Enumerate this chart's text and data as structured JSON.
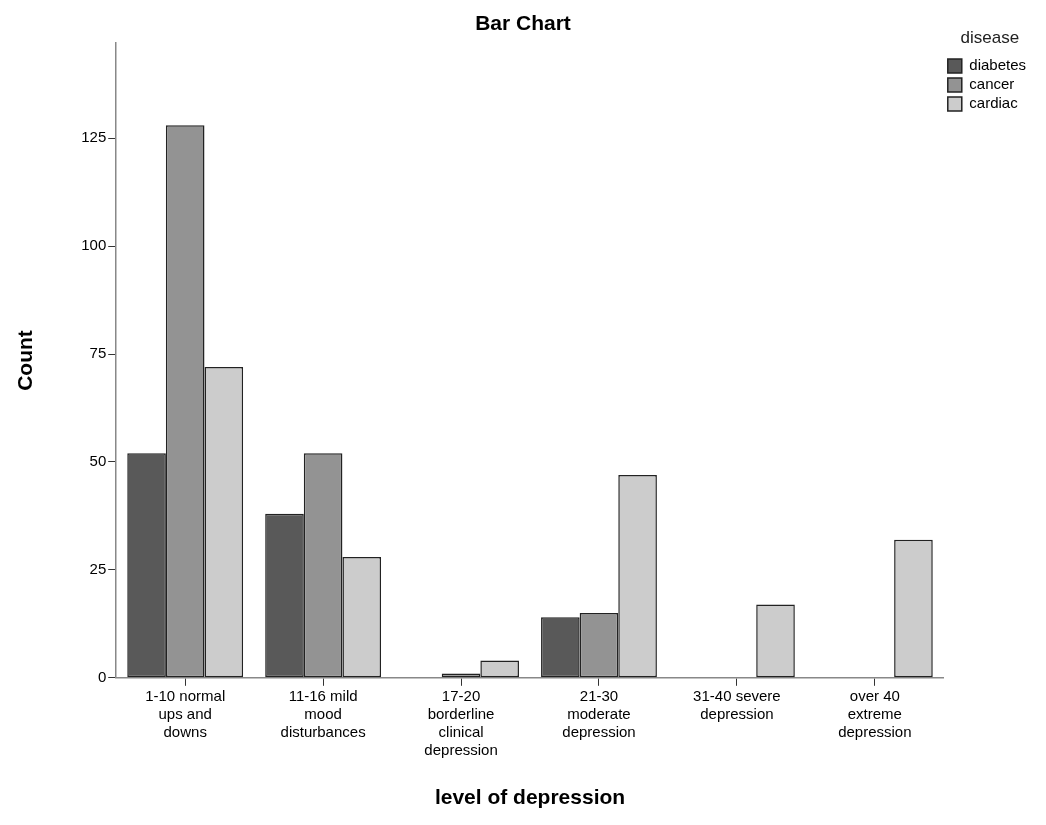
{
  "chart_data": {
    "type": "bar",
    "title": "Bar Chart",
    "xlabel": "level of depression",
    "ylabel": "Count",
    "legend_title": "disease",
    "categories": [
      "1-10 normal ups and downs",
      "11-16 mild mood disturbances",
      "17-20 borderline clinical depression",
      "21-30 moderate depression",
      "31-40 severe depression",
      "over 40 extreme depression"
    ],
    "series": [
      {
        "name": "diabetes",
        "color": "#595959",
        "values": [
          52,
          38,
          null,
          14,
          null,
          null
        ]
      },
      {
        "name": "cancer",
        "color": "#939393",
        "values": [
          128,
          52,
          1,
          15,
          null,
          null
        ]
      },
      {
        "name": "cardiac",
        "color": "#cccccc",
        "values": [
          72,
          28,
          4,
          47,
          17,
          32
        ]
      }
    ],
    "ylim": [
      0,
      147
    ],
    "yticks": [
      0,
      25,
      50,
      75,
      100,
      125
    ],
    "grid": false,
    "legend": "top right"
  }
}
